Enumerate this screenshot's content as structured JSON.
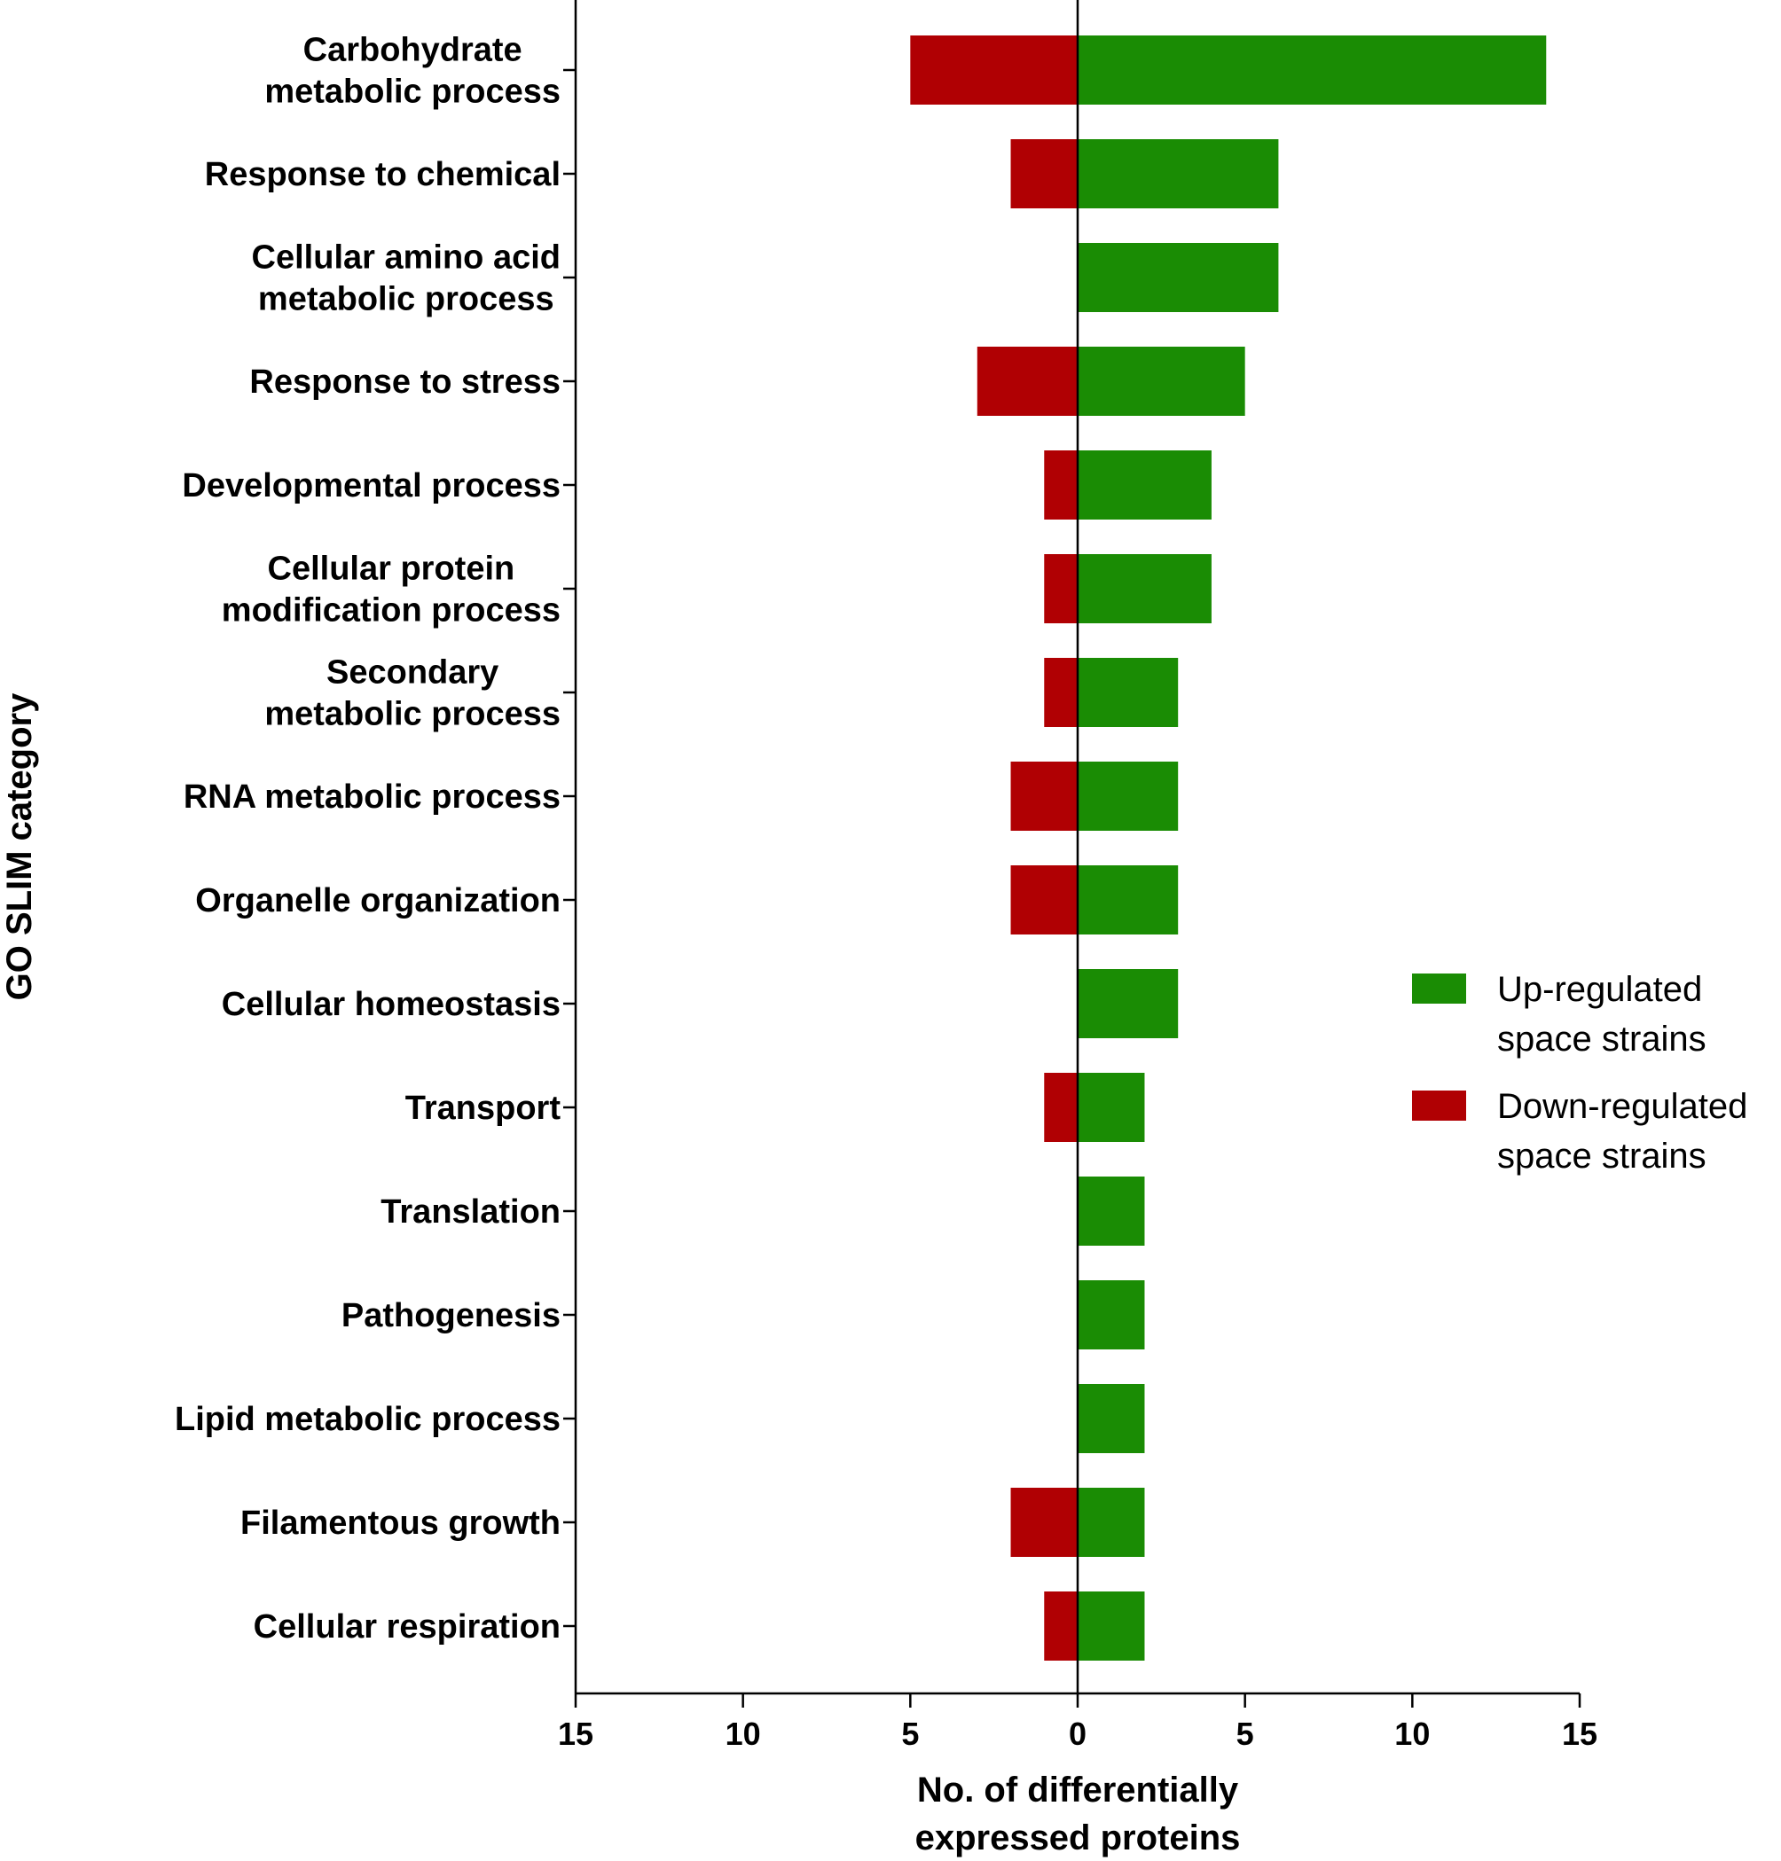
{
  "chart_data": {
    "type": "bar",
    "orientation": "horizontal",
    "layout": "diverging",
    "categories": [
      [
        "Carbohydrate",
        "metabolic process"
      ],
      [
        "Response to chemical"
      ],
      [
        "Cellular amino acid",
        "metabolic process"
      ],
      [
        "Response to stress"
      ],
      [
        "Developmental process"
      ],
      [
        "Cellular protein",
        "modification process"
      ],
      [
        "Secondary",
        "metabolic process"
      ],
      [
        "RNA metabolic process"
      ],
      [
        "Organelle organization"
      ],
      [
        "Cellular homeostasis"
      ],
      [
        "Transport"
      ],
      [
        "Translation"
      ],
      [
        "Pathogenesis"
      ],
      [
        "Lipid metabolic process"
      ],
      [
        "Filamentous growth"
      ],
      [
        "Cellular respiration"
      ]
    ],
    "series": [
      {
        "name": "Up-regulated space strains",
        "color": "#1a8c04",
        "direction": "right",
        "values": [
          14,
          6,
          6,
          5,
          4,
          4,
          3,
          3,
          3,
          3,
          2,
          2,
          2,
          2,
          2,
          2
        ]
      },
      {
        "name": "Down-regulated space strains",
        "color": "#b00003",
        "direction": "left",
        "values": [
          5,
          2,
          0,
          3,
          1,
          1,
          1,
          2,
          2,
          0,
          1,
          0,
          0,
          0,
          2,
          1
        ]
      }
    ],
    "xlim": [
      -15,
      15
    ],
    "xticks": [
      -15,
      -10,
      -5,
      0,
      5,
      10,
      15
    ],
    "xtick_labels": [
      "15",
      "10",
      "5",
      "0",
      "5",
      "10",
      "15"
    ],
    "xlabel": [
      "No. of differentially",
      "expressed proteins"
    ],
    "ylabel": "GO SLIM category",
    "legend": {
      "position": "right",
      "entries": [
        [
          "Up-regulated",
          "space strains"
        ],
        [
          "Down-regulated",
          "space strains"
        ]
      ]
    },
    "grid": false
  }
}
